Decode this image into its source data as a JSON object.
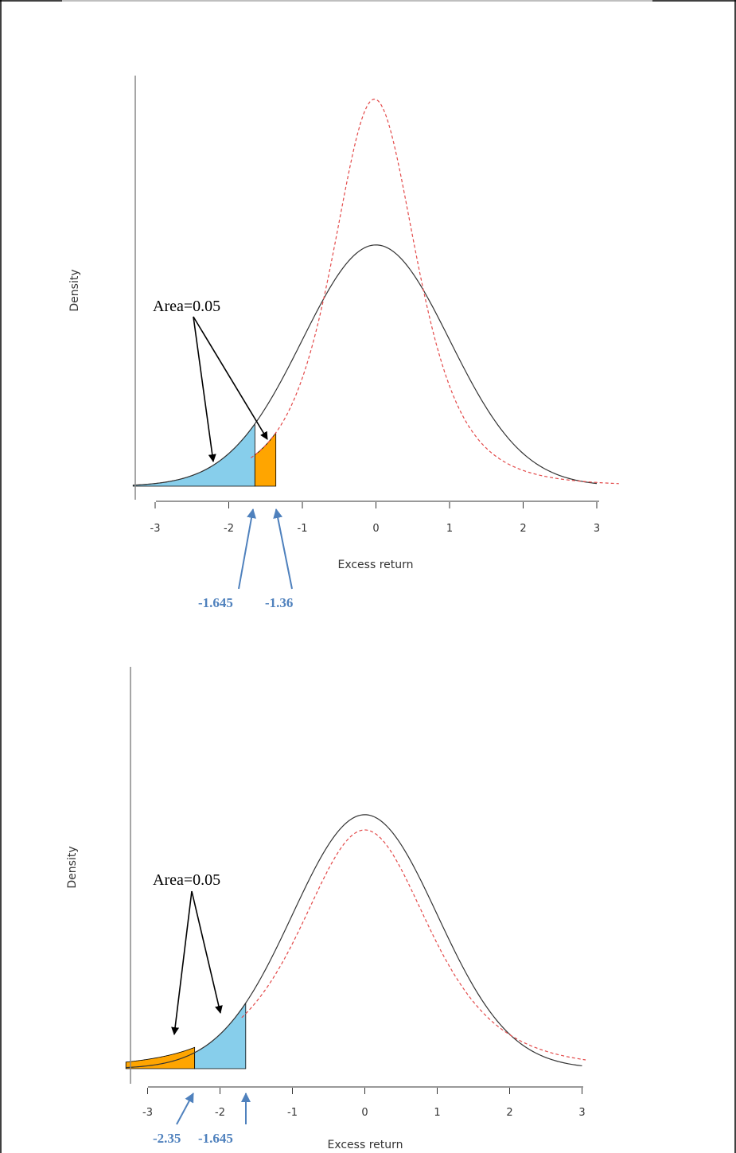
{
  "colors": {
    "normal_curve": "#333333",
    "alt_curve": "#e34a4a",
    "tail_blue": "#87ceeb",
    "tail_orange": "#ffa500",
    "critical_label": "#4f81bd",
    "axis": "#888888"
  },
  "chart_data": [
    {
      "type": "area",
      "title": "",
      "xlabel": "Excess return",
      "ylabel": "Density",
      "xlim": [
        -3.3,
        3.3
      ],
      "x_ticks": [
        -3,
        -2,
        -1,
        0,
        1,
        2,
        3
      ],
      "y_ticks_shown": false,
      "grid": false,
      "series": [
        {
          "style": "solid-dark",
          "distribution": "normal",
          "mean": 0,
          "sd": 1,
          "peak_density": 0.399
        },
        {
          "style": "dashed-red",
          "distribution": "heavy-tailed",
          "peak_density": 0.64
        }
      ],
      "shaded_regions": [
        {
          "color": "blue",
          "from": -3.3,
          "to": -1.645,
          "under": "solid-dark"
        },
        {
          "color": "orange",
          "from": -1.645,
          "to": -1.36,
          "under": "dashed-red"
        }
      ],
      "annotation": "Area=0.05",
      "critical_values": [
        {
          "value": -1.645,
          "label": "-1.645"
        },
        {
          "value": -1.36,
          "label": "-1.36"
        }
      ]
    },
    {
      "type": "area",
      "title": "",
      "xlabel": "Excess return",
      "ylabel": "Density",
      "xlim": [
        -3.3,
        3.3
      ],
      "x_ticks": [
        -3,
        -2,
        -1,
        0,
        1,
        2,
        3
      ],
      "y_ticks_shown": false,
      "grid": false,
      "series": [
        {
          "style": "solid-dark",
          "distribution": "normal",
          "mean": 0,
          "sd": 1,
          "peak_density": 0.399
        },
        {
          "style": "dashed-red",
          "distribution": "heavy-tailed",
          "peak_density": 0.375
        }
      ],
      "shaded_regions": [
        {
          "color": "orange",
          "from": -3.3,
          "to": -2.35,
          "under": "dashed-red"
        },
        {
          "color": "blue",
          "from": -2.35,
          "to": -1.645,
          "under": "solid-dark"
        }
      ],
      "annotation": "Area=0.05",
      "critical_values": [
        {
          "value": -2.35,
          "label": "-2.35"
        },
        {
          "value": -1.645,
          "label": "-1.645"
        }
      ]
    }
  ]
}
